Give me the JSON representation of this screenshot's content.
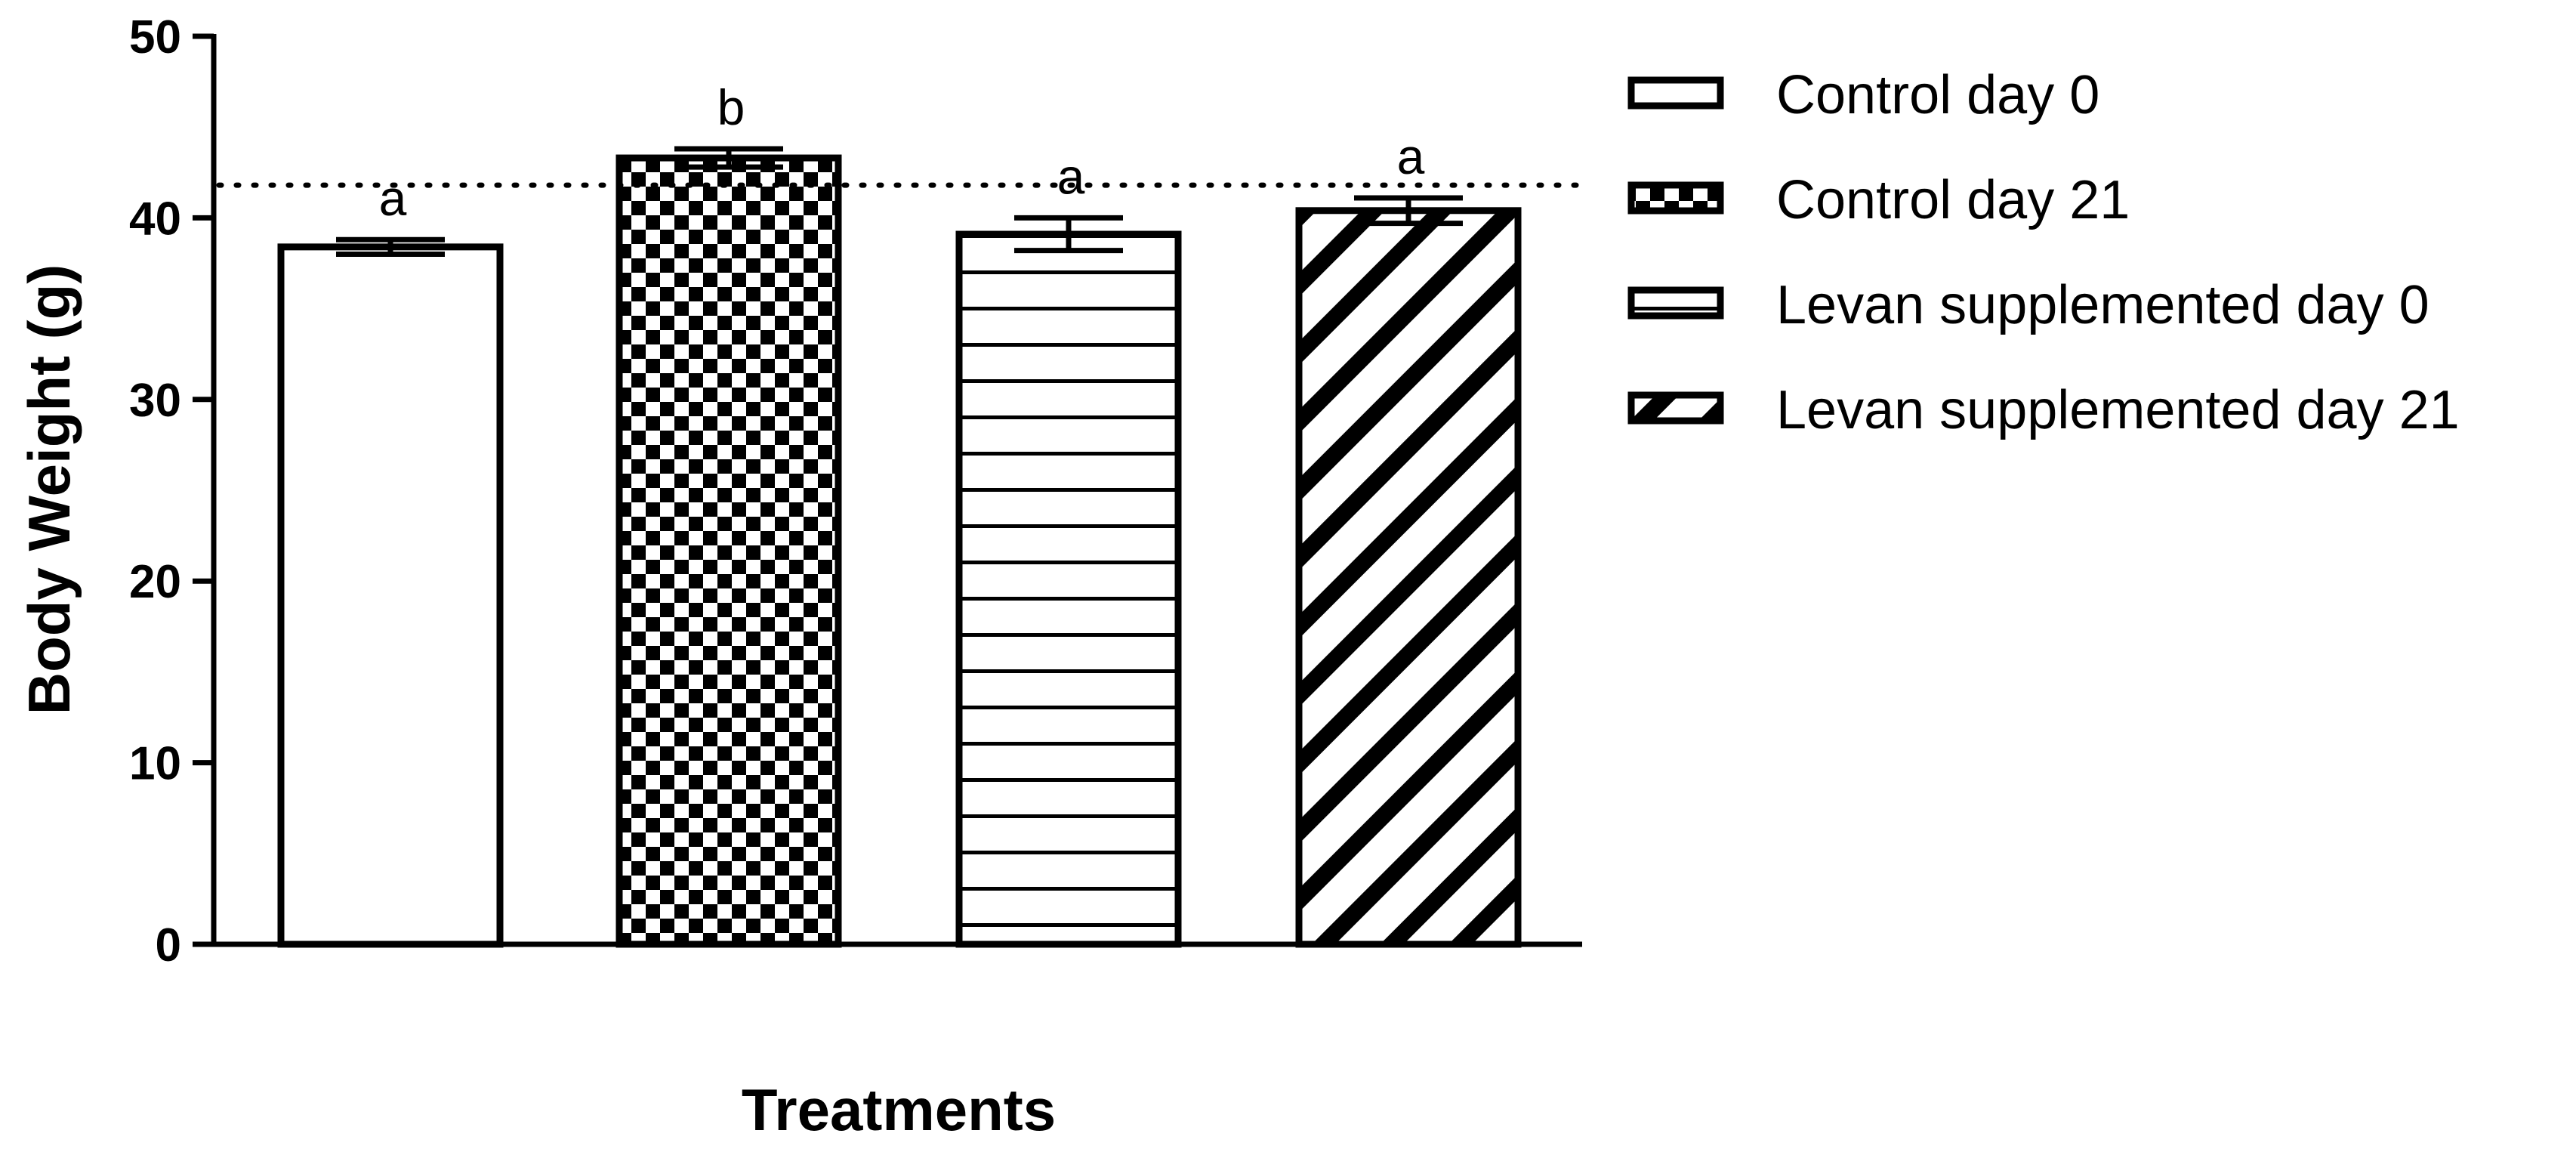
{
  "chart_data": {
    "type": "bar",
    "xlabel": "Treatments",
    "ylabel": "Body Weight (g)",
    "ylim": [
      0,
      50
    ],
    "yticks": [
      0,
      10,
      20,
      30,
      40,
      50
    ],
    "grid": false,
    "legend_position": "right",
    "reference_line": {
      "value": 41.8,
      "style": "dotted"
    },
    "bars": [
      {
        "name": "Control day 0",
        "value": 38.4,
        "error": 0.4,
        "significance": "a",
        "pattern": "none"
      },
      {
        "name": "Control day 21",
        "value": 43.3,
        "error": 0.5,
        "significance": "b",
        "pattern": "checker"
      },
      {
        "name": "Levan supplemented day 0",
        "value": 39.1,
        "error": 0.9,
        "significance": "a",
        "pattern": "horizontal"
      },
      {
        "name": "Levan supplemented day 21",
        "value": 40.4,
        "error": 0.7,
        "significance": "a",
        "pattern": "diagonal"
      }
    ],
    "colors": {
      "stroke": "#000000",
      "fill": "#ffffff"
    }
  }
}
